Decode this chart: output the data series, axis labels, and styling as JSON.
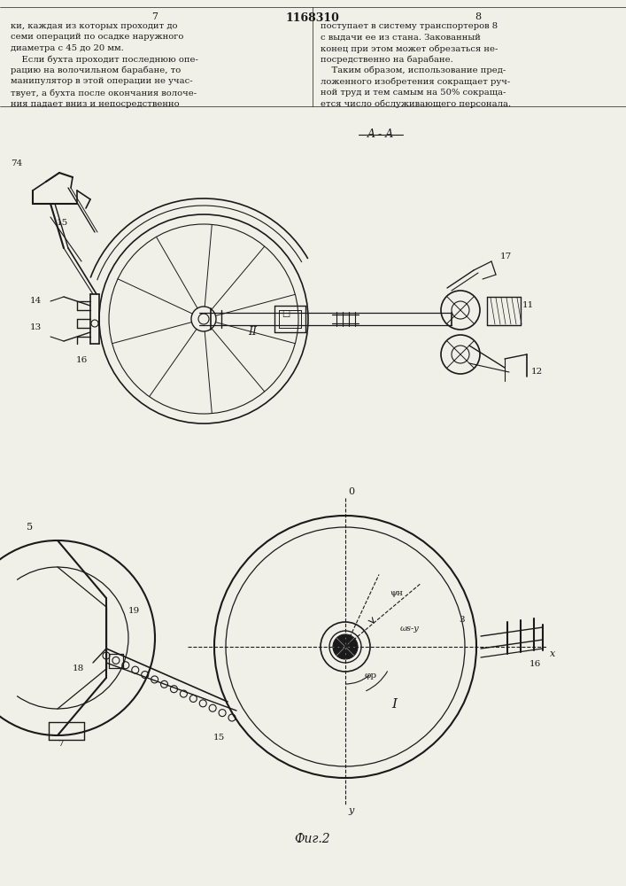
{
  "page_number_left": "7",
  "page_number_right": "8",
  "patent_number": "1168310",
  "section_label": "A - A",
  "fig_label": "Фиг.2",
  "text_left_lines": [
    "ки, каждая из которых проходит до",
    "семи операций по осадке наружного",
    "диаметра с 45 до 20 мм.",
    "    Если бухта проходит последнюю опе-",
    "рацию на волочильном барабане, то",
    "манипулятор в этой операции не учас-",
    "твует, а бухта после окончания волоче-",
    "ния падает вниз и непосредственно"
  ],
  "text_right_lines": [
    "поступает в систему транспортеров 8",
    "с выдачи ее из стана. Закованный",
    "конец при этом может обрезаться не-",
    "посредственно на барабане.",
    "    Таким образом, использование пред-",
    "ложенного изобретения сокращает руч-",
    "ной труд и тем самым на 50% сокраща-",
    "ется число обслуживающего персонала."
  ],
  "bg_color": "#f0efe8",
  "line_color": "#1a1a1a"
}
